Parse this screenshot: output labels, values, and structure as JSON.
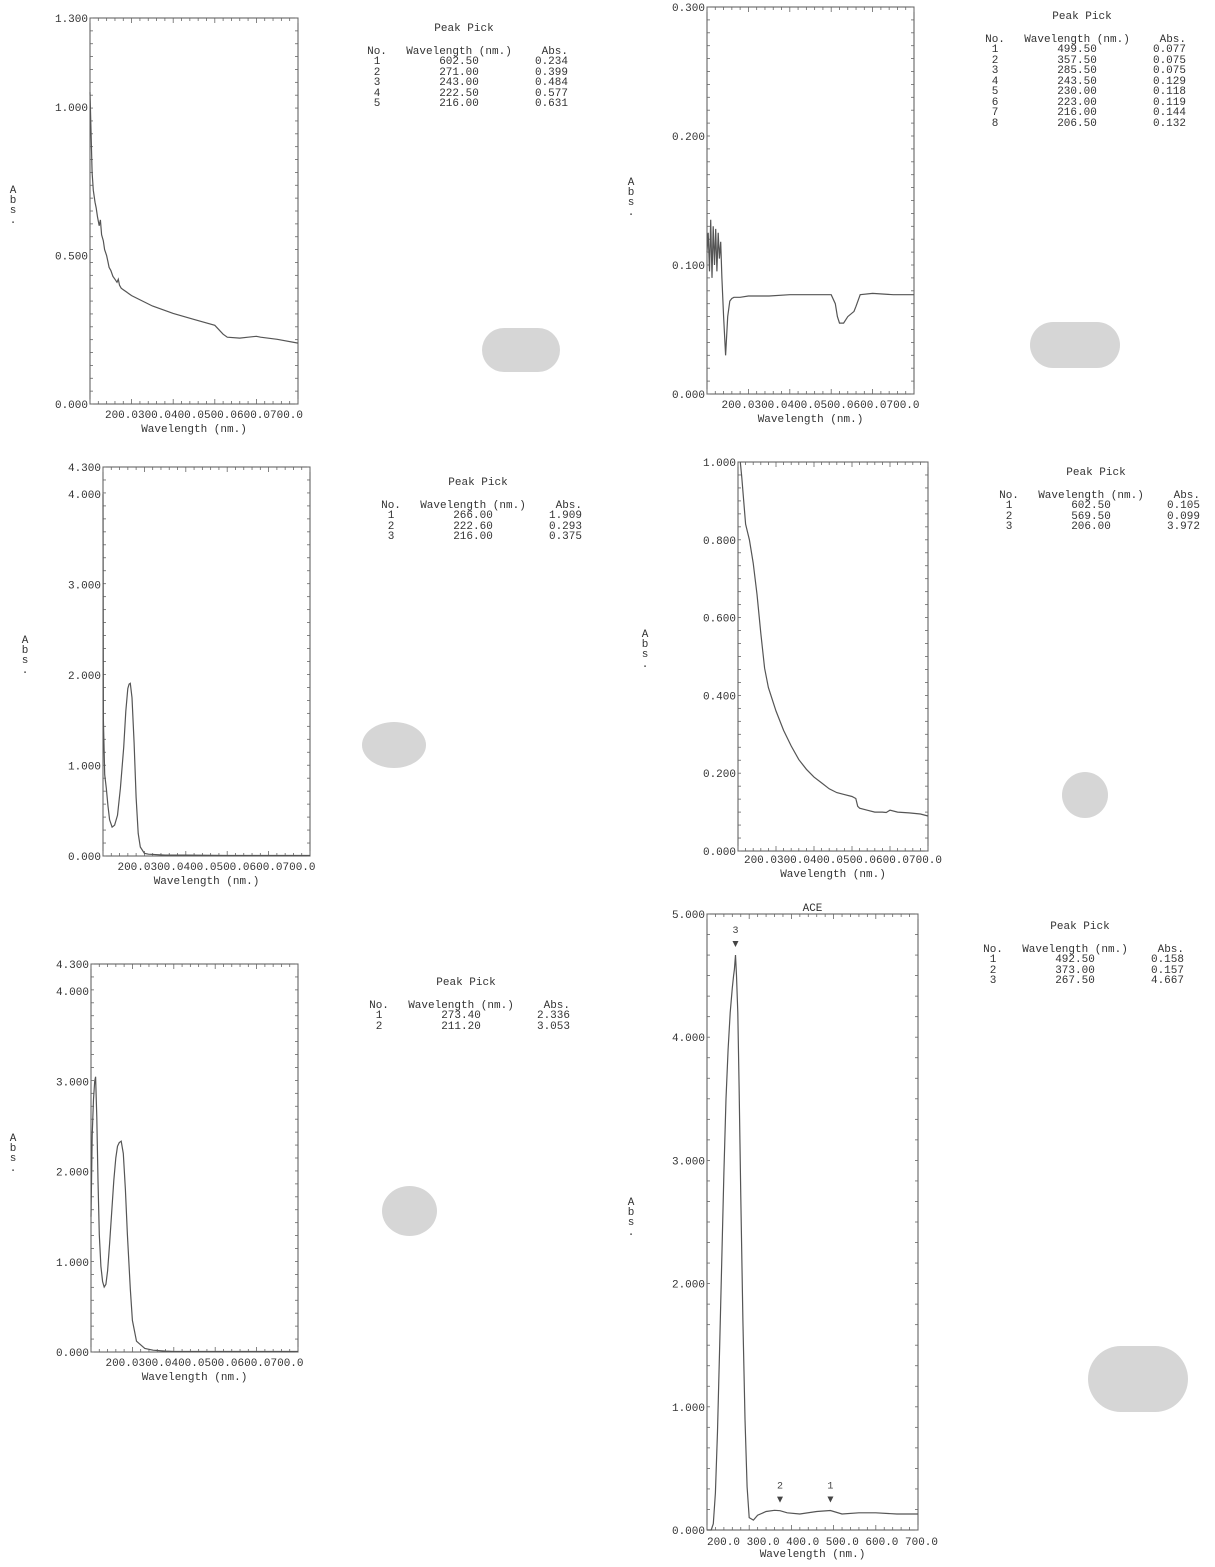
{
  "common": {
    "ylabel_chars": [
      "A",
      "b",
      "s",
      "."
    ],
    "xlabel": "Wavelength (nm.)",
    "peak_title": "Peak Pick",
    "col_no": "No.",
    "col_wl": "Wavelength (nm.)",
    "col_abs": "Abs."
  },
  "chart_data": [
    {
      "type": "line",
      "xlabel": "Wavelength (nm.)",
      "ylabel": "Abs.",
      "xlim": [
        200,
        700
      ],
      "ylim": [
        0,
        1.3
      ],
      "x_tick_labels": [
        "200.0",
        "300.0",
        "400.0",
        "500.0",
        "600.0",
        "700.0"
      ],
      "y_tick_labels": [
        "0.000",
        "0.500",
        "1.000",
        "1.300"
      ],
      "x": [
        200,
        205,
        208,
        212,
        215,
        218,
        222,
        225,
        228,
        232,
        235,
        240,
        243,
        246,
        250,
        255,
        260,
        265,
        268,
        271,
        275,
        280,
        300,
        350,
        400,
        450,
        500,
        520,
        530,
        560,
        580,
        600,
        610,
        650,
        700
      ],
      "y": [
        1.05,
        0.78,
        0.72,
        0.68,
        0.66,
        0.63,
        0.6,
        0.62,
        0.57,
        0.55,
        0.52,
        0.5,
        0.48,
        0.46,
        0.45,
        0.43,
        0.42,
        0.41,
        0.42,
        0.4,
        0.39,
        0.385,
        0.365,
        0.33,
        0.305,
        0.285,
        0.265,
        0.235,
        0.225,
        0.222,
        0.225,
        0.228,
        0.225,
        0.218,
        0.205
      ],
      "peak_pick": [
        {
          "no": "1",
          "wl": "602.50",
          "abs": "0.234"
        },
        {
          "no": "2",
          "wl": "271.00",
          "abs": "0.399"
        },
        {
          "no": "3",
          "wl": "243.00",
          "abs": "0.484"
        },
        {
          "no": "4",
          "wl": "222.50",
          "abs": "0.577"
        },
        {
          "no": "5",
          "wl": "216.00",
          "abs": "0.631"
        }
      ]
    },
    {
      "type": "line",
      "xlabel": "Wavelength (nm.)",
      "ylabel": "Abs.",
      "xlim": [
        200,
        700
      ],
      "ylim": [
        0,
        0.3
      ],
      "x_tick_labels": [
        "200.0",
        "300.0",
        "400.0",
        "500.0",
        "600.0",
        "700.0"
      ],
      "y_tick_labels": [
        "0.000",
        "0.100",
        "0.200",
        "0.300"
      ],
      "x": [
        200,
        203,
        206,
        209,
        212,
        215,
        218,
        221,
        224,
        227,
        230,
        233,
        236,
        240,
        245,
        250,
        255,
        260,
        265,
        270,
        280,
        300,
        350,
        400,
        450,
        490,
        500,
        510,
        515,
        520,
        530,
        540,
        555,
        560,
        570,
        600,
        650,
        700
      ],
      "y": [
        0.11,
        0.125,
        0.095,
        0.135,
        0.09,
        0.13,
        0.1,
        0.128,
        0.095,
        0.125,
        0.105,
        0.118,
        0.09,
        0.06,
        0.03,
        0.06,
        0.072,
        0.074,
        0.075,
        0.075,
        0.075,
        0.076,
        0.076,
        0.077,
        0.077,
        0.077,
        0.077,
        0.07,
        0.06,
        0.055,
        0.055,
        0.06,
        0.064,
        0.068,
        0.077,
        0.078,
        0.077,
        0.077
      ],
      "peak_pick": [
        {
          "no": "1",
          "wl": "499.50",
          "abs": "0.077"
        },
        {
          "no": "2",
          "wl": "357.50",
          "abs": "0.075"
        },
        {
          "no": "3",
          "wl": "285.50",
          "abs": "0.075"
        },
        {
          "no": "4",
          "wl": "243.50",
          "abs": "0.129"
        },
        {
          "no": "5",
          "wl": "230.00",
          "abs": "0.118"
        },
        {
          "no": "6",
          "wl": "223.00",
          "abs": "0.119"
        },
        {
          "no": "7",
          "wl": "216.00",
          "abs": "0.144"
        },
        {
          "no": "8",
          "wl": "206.50",
          "abs": "0.132"
        }
      ]
    },
    {
      "type": "line",
      "xlabel": "Wavelength (nm.)",
      "ylabel": "Abs.",
      "xlim": [
        200,
        700
      ],
      "ylim": [
        0,
        4.3
      ],
      "x_tick_labels": [
        "200.0",
        "300.0",
        "400.0",
        "500.0",
        "600.0",
        "700.0"
      ],
      "y_tick_labels": [
        "0.000",
        "1.000",
        "2.000",
        "3.000",
        "4.000",
        "4.300"
      ],
      "x": [
        200,
        201,
        204,
        208,
        212,
        216,
        222,
        228,
        235,
        242,
        250,
        255,
        260,
        263,
        266,
        270,
        275,
        280,
        285,
        290,
        300,
        310,
        350,
        400,
        500,
        600,
        700
      ],
      "y": [
        4.0,
        1.5,
        0.9,
        0.75,
        0.55,
        0.4,
        0.32,
        0.34,
        0.45,
        0.75,
        1.2,
        1.6,
        1.85,
        1.9,
        1.909,
        1.75,
        1.25,
        0.65,
        0.25,
        0.1,
        0.03,
        0.02,
        0.01,
        0.01,
        0.005,
        0.005,
        0.005
      ],
      "peak_pick": [
        {
          "no": "1",
          "wl": "266.00",
          "abs": "1.909"
        },
        {
          "no": "2",
          "wl": "222.60",
          "abs": "0.293"
        },
        {
          "no": "3",
          "wl": "216.00",
          "abs": "0.375"
        }
      ]
    },
    {
      "type": "line",
      "xlabel": "Wavelength (nm.)",
      "ylabel": "Abs.",
      "xlim": [
        200,
        700
      ],
      "ylim": [
        0,
        1.0
      ],
      "x_tick_labels": [
        "200.0",
        "300.0",
        "400.0",
        "500.0",
        "600.0",
        "700.0"
      ],
      "y_tick_labels": [
        "0.000",
        "0.200",
        "0.400",
        "0.600",
        "0.800",
        "1.000"
      ],
      "x": [
        206,
        210,
        215,
        220,
        225,
        230,
        240,
        250,
        260,
        270,
        280,
        300,
        320,
        340,
        360,
        380,
        400,
        420,
        440,
        460,
        480,
        500,
        510,
        515,
        520,
        540,
        560,
        580,
        590,
        600,
        620,
        650,
        680,
        700
      ],
      "y": [
        1.0,
        0.96,
        0.9,
        0.84,
        0.82,
        0.8,
        0.74,
        0.66,
        0.56,
        0.47,
        0.42,
        0.36,
        0.31,
        0.27,
        0.235,
        0.21,
        0.19,
        0.175,
        0.16,
        0.15,
        0.145,
        0.14,
        0.135,
        0.115,
        0.11,
        0.105,
        0.1,
        0.1,
        0.099,
        0.105,
        0.1,
        0.098,
        0.095,
        0.09
      ],
      "peak_pick": [
        {
          "no": "1",
          "wl": "602.50",
          "abs": "0.105"
        },
        {
          "no": "2",
          "wl": "569.50",
          "abs": "0.099"
        },
        {
          "no": "3",
          "wl": "206.00",
          "abs": "3.972"
        }
      ]
    },
    {
      "type": "line",
      "xlabel": "Wavelength (nm.)",
      "ylabel": "Abs.",
      "xlim": [
        200,
        700
      ],
      "ylim": [
        0,
        4.3
      ],
      "x_tick_labels": [
        "200.0",
        "300.0",
        "400.0",
        "500.0",
        "600.0",
        "700.0"
      ],
      "y_tick_labels": [
        "0.000",
        "1.000",
        "2.000",
        "3.000",
        "4.000",
        "4.300"
      ],
      "x": [
        200,
        203,
        206,
        209,
        211,
        214,
        217,
        220,
        224,
        228,
        232,
        236,
        240,
        245,
        250,
        255,
        260,
        264,
        268,
        273,
        278,
        283,
        288,
        295,
        300,
        310,
        330,
        350,
        380,
        400,
        450,
        500,
        600,
        700
      ],
      "y": [
        1.5,
        2.4,
        2.8,
        3.0,
        3.05,
        2.6,
        1.9,
        1.3,
        0.95,
        0.78,
        0.72,
        0.75,
        0.9,
        1.2,
        1.55,
        1.9,
        2.15,
        2.28,
        2.32,
        2.336,
        2.2,
        1.8,
        1.3,
        0.7,
        0.35,
        0.12,
        0.04,
        0.02,
        0.01,
        0.005,
        0.005,
        0.005,
        0.005,
        0.005
      ],
      "peak_pick": [
        {
          "no": "1",
          "wl": "273.40",
          "abs": "2.336"
        },
        {
          "no": "2",
          "wl": "211.20",
          "abs": "3.053"
        }
      ]
    },
    {
      "type": "line",
      "title": "ACE",
      "xlabel": "Wavelength (nm.)",
      "ylabel": "Abs.",
      "xlim": [
        200,
        700
      ],
      "ylim": [
        0,
        5.0
      ],
      "x_tick_labels": [
        "200.0",
        "300.0",
        "400.0",
        "500.0",
        "600.0",
        "700.0"
      ],
      "y_tick_labels": [
        "0.000",
        "1.000",
        "2.000",
        "3.000",
        "4.000",
        "5.000"
      ],
      "x": [
        200,
        210,
        215,
        220,
        225,
        230,
        235,
        240,
        245,
        250,
        255,
        260,
        263,
        265,
        267.5,
        270,
        273,
        276,
        280,
        285,
        290,
        295,
        300,
        310,
        320,
        340,
        360,
        373,
        390,
        420,
        460,
        492.5,
        520,
        560,
        600,
        650,
        700
      ],
      "y": [
        0.0,
        0.0,
        0.05,
        0.3,
        0.8,
        1.5,
        2.2,
        2.9,
        3.5,
        3.9,
        4.2,
        4.4,
        4.5,
        4.55,
        4.667,
        4.5,
        4.2,
        3.6,
        2.7,
        1.7,
        0.9,
        0.35,
        0.1,
        0.08,
        0.12,
        0.15,
        0.16,
        0.157,
        0.14,
        0.13,
        0.15,
        0.158,
        0.13,
        0.14,
        0.14,
        0.13,
        0.13
      ],
      "markers": [
        {
          "label": "3",
          "x": 267.5,
          "y": 4.667
        },
        {
          "label": "2",
          "x": 373.0,
          "y": 0.157
        },
        {
          "label": "1",
          "x": 492.5,
          "y": 0.158
        }
      ],
      "peak_pick": [
        {
          "no": "1",
          "wl": "492.50",
          "abs": "0.158"
        },
        {
          "no": "2",
          "wl": "373.00",
          "abs": "0.157"
        },
        {
          "no": "3",
          "wl": "267.50",
          "abs": "4.667"
        }
      ]
    }
  ]
}
